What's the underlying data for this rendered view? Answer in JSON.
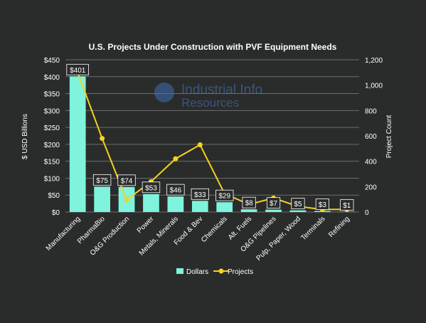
{
  "chart_data": {
    "type": "bar",
    "title": "U.S. Projects Under Construction with PVF Equipment Needs",
    "watermark": {
      "line1": "Industrial Info",
      "line2": "Resources"
    },
    "categories": [
      "Manufacturing",
      "PharmaBio",
      "O&G Production",
      "Power",
      "Metals, Minerals",
      "Food & Bev",
      "Chemicals",
      "Alt. Fuels",
      "O&G Pipelines",
      "Pulp, Paper, Wood",
      "Terminals",
      "Refining"
    ],
    "series": [
      {
        "name": "Dollars",
        "type": "bar",
        "axis": "left",
        "color": "#7ff3dc",
        "values": [
          401,
          75,
          74,
          53,
          46,
          33,
          29,
          8,
          7,
          5,
          3,
          1
        ],
        "labels": [
          "$401",
          "$75",
          "$74",
          "$53",
          "$46",
          "$33",
          "$29",
          "$8",
          "$7",
          "$5",
          "$3",
          "$1"
        ]
      },
      {
        "name": "Projects",
        "type": "line",
        "axis": "right",
        "color": "#f5d21f",
        "values": [
          1100,
          580,
          95,
          240,
          420,
          530,
          145,
          60,
          110,
          45,
          20,
          20
        ]
      }
    ],
    "ylabel": "$ USD Billions",
    "y2label": "Project Count",
    "ylim": [
      0,
      450
    ],
    "y2lim": [
      0,
      1200
    ],
    "yticks": [
      "$0",
      "$50",
      "$100",
      "$150",
      "$200",
      "$250",
      "$300",
      "$350",
      "$400",
      "$450"
    ],
    "y2ticks": [
      "0",
      "200",
      "400",
      "600",
      "800",
      "1,000",
      "1,200"
    ],
    "legend": {
      "position": "bottom",
      "items": [
        "Dollars",
        "Projects"
      ]
    },
    "grid": true
  }
}
